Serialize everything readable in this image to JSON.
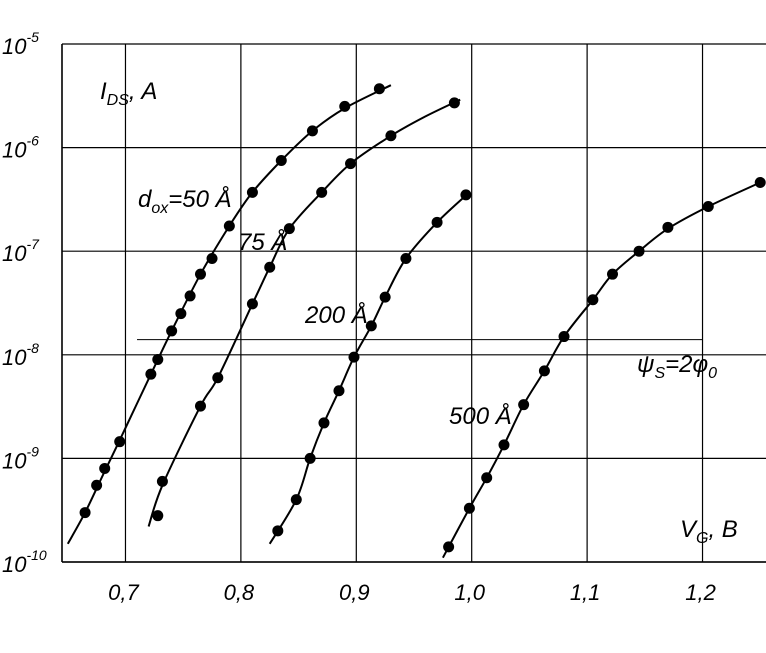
{
  "chart_data": {
    "type": "scatter",
    "log_y": true,
    "xlim": [
      0.645,
      1.255
    ],
    "ylim": [
      1e-10,
      1e-05
    ],
    "grid": true,
    "x_ticks": [
      {
        "value": 0.7,
        "label": "0,7"
      },
      {
        "value": 0.8,
        "label": "0,8"
      },
      {
        "value": 0.9,
        "label": "0,9"
      },
      {
        "value": 1.0,
        "label": "1,0"
      },
      {
        "value": 1.1,
        "label": "1,1"
      },
      {
        "value": 1.2,
        "label": "1,2"
      }
    ],
    "y_ticks": [
      {
        "value": 1e-05,
        "base": "10",
        "exp": "-5"
      },
      {
        "value": 1e-06,
        "base": "10",
        "exp": "-6"
      },
      {
        "value": 1e-07,
        "base": "10",
        "exp": "-7"
      },
      {
        "value": 1e-08,
        "base": "10",
        "exp": "-8"
      },
      {
        "value": 1e-09,
        "base": "10",
        "exp": "-9"
      },
      {
        "value": 1e-10,
        "base": "10",
        "exp": "-10"
      }
    ],
    "ylabel": {
      "main": "I",
      "sub": "DS",
      "rest": ", A"
    },
    "xlabel": {
      "main": "V",
      "sub": "G",
      "rest": ", B"
    },
    "series": [
      {
        "name": "d_ox=50 Å",
        "label_parts": {
          "main": "d",
          "sub": "ox",
          "rest": "=50 Å"
        },
        "points": [
          [
            0.665,
            3e-10
          ],
          [
            0.675,
            5.5e-10
          ],
          [
            0.682,
            8e-10
          ],
          [
            0.695,
            1.45e-09
          ],
          [
            0.722,
            6.5e-09
          ],
          [
            0.728,
            9e-09
          ],
          [
            0.74,
            1.7e-08
          ],
          [
            0.748,
            2.5e-08
          ],
          [
            0.756,
            3.7e-08
          ],
          [
            0.765,
            6e-08
          ],
          [
            0.775,
            8.5e-08
          ],
          [
            0.79,
            1.75e-07
          ],
          [
            0.81,
            3.7e-07
          ],
          [
            0.835,
            7.5e-07
          ],
          [
            0.862,
            1.45e-06
          ],
          [
            0.89,
            2.5e-06
          ],
          [
            0.92,
            3.7e-06
          ]
        ],
        "curve": [
          [
            0.65,
            1.5e-10
          ],
          [
            0.665,
            3e-10
          ],
          [
            0.682,
            7.5e-10
          ],
          [
            0.695,
            1.5e-09
          ],
          [
            0.722,
            6.5e-09
          ],
          [
            0.74,
            1.7e-08
          ],
          [
            0.765,
            6e-08
          ],
          [
            0.79,
            1.75e-07
          ],
          [
            0.81,
            3.7e-07
          ],
          [
            0.835,
            7.5e-07
          ],
          [
            0.862,
            1.45e-06
          ],
          [
            0.89,
            2.4e-06
          ],
          [
            0.93,
            4e-06
          ]
        ]
      },
      {
        "name": "75 Å",
        "points": [
          [
            0.728,
            2.8e-10
          ],
          [
            0.732,
            6e-10
          ],
          [
            0.765,
            3.2e-09
          ],
          [
            0.78,
            6e-09
          ],
          [
            0.81,
            3.1e-08
          ],
          [
            0.825,
            7e-08
          ],
          [
            0.842,
            1.65e-07
          ],
          [
            0.87,
            3.7e-07
          ],
          [
            0.895,
            7e-07
          ],
          [
            0.93,
            1.3e-06
          ],
          [
            0.985,
            2.7e-06
          ]
        ],
        "curve": [
          [
            0.72,
            2.2e-10
          ],
          [
            0.732,
            5.5e-10
          ],
          [
            0.765,
            3.2e-09
          ],
          [
            0.78,
            6e-09
          ],
          [
            0.81,
            3.1e-08
          ],
          [
            0.825,
            7e-08
          ],
          [
            0.842,
            1.65e-07
          ],
          [
            0.87,
            3.7e-07
          ],
          [
            0.895,
            7e-07
          ],
          [
            0.93,
            1.3e-06
          ],
          [
            0.96,
            2e-06
          ],
          [
            0.99,
            2.9e-06
          ]
        ]
      },
      {
        "name": "200 Å",
        "points": [
          [
            0.832,
            2e-10
          ],
          [
            0.848,
            4e-10
          ],
          [
            0.86,
            1e-09
          ],
          [
            0.872,
            2.2e-09
          ],
          [
            0.885,
            4.5e-09
          ],
          [
            0.898,
            9.5e-09
          ],
          [
            0.913,
            1.9e-08
          ],
          [
            0.925,
            3.6e-08
          ],
          [
            0.943,
            8.5e-08
          ],
          [
            0.97,
            1.9e-07
          ],
          [
            0.995,
            3.5e-07
          ]
        ],
        "curve": [
          [
            0.825,
            1.5e-10
          ],
          [
            0.848,
            4e-10
          ],
          [
            0.86,
            1e-09
          ],
          [
            0.872,
            2.2e-09
          ],
          [
            0.885,
            4.5e-09
          ],
          [
            0.898,
            9.5e-09
          ],
          [
            0.913,
            1.9e-08
          ],
          [
            0.925,
            3.6e-08
          ],
          [
            0.943,
            8.5e-08
          ],
          [
            0.97,
            1.9e-07
          ],
          [
            0.998,
            3.7e-07
          ]
        ]
      },
      {
        "name": "500 Å",
        "points": [
          [
            0.98,
            1.4e-10
          ],
          [
            0.998,
            3.3e-10
          ],
          [
            1.013,
            6.5e-10
          ],
          [
            1.028,
            1.35e-09
          ],
          [
            1.045,
            3.3e-09
          ],
          [
            1.063,
            7e-09
          ],
          [
            1.08,
            1.5e-08
          ],
          [
            1.105,
            3.4e-08
          ],
          [
            1.122,
            6e-08
          ],
          [
            1.145,
            1e-07
          ],
          [
            1.17,
            1.7e-07
          ],
          [
            1.205,
            2.7e-07
          ],
          [
            1.25,
            4.6e-07
          ]
        ],
        "curve": [
          [
            0.975,
            1.1e-10
          ],
          [
            0.998,
            3.3e-10
          ],
          [
            1.013,
            6.5e-10
          ],
          [
            1.028,
            1.35e-09
          ],
          [
            1.045,
            3.3e-09
          ],
          [
            1.063,
            7e-09
          ],
          [
            1.08,
            1.5e-08
          ],
          [
            1.105,
            3.4e-08
          ],
          [
            1.122,
            6e-08
          ],
          [
            1.145,
            1e-07
          ],
          [
            1.17,
            1.65e-07
          ],
          [
            1.205,
            2.7e-07
          ],
          [
            1.25,
            4.6e-07
          ]
        ]
      }
    ],
    "reference_line": {
      "y": 1.4e-08,
      "x_range": [
        0.71,
        1.2
      ],
      "label_parts": {
        "main": "ψ",
        "sub": "S",
        "rest": "=2φ",
        "sub2": "0"
      }
    }
  }
}
